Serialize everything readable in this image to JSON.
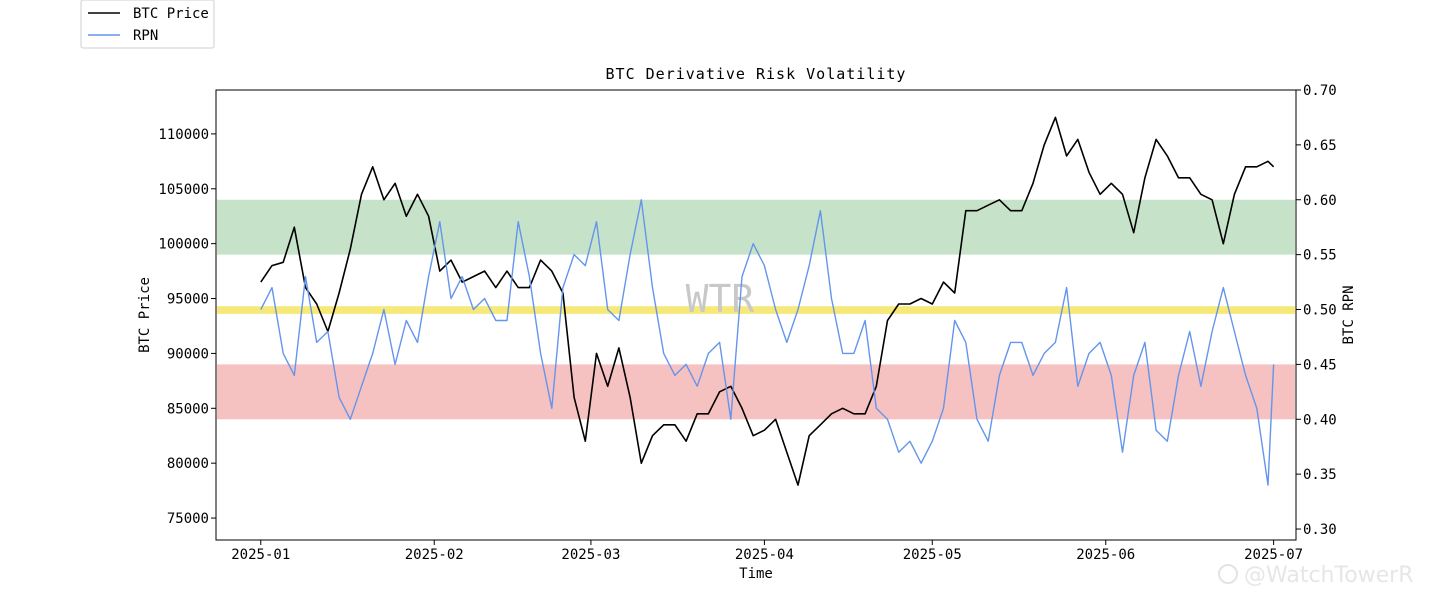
{
  "chart_data": {
    "type": "line",
    "title": "BTC Derivative Risk Volatility",
    "xlabel": "Time",
    "ylabel_left": "BTC Price",
    "ylabel_right": "BTC RPN",
    "x_ticks": [
      "2025-01",
      "2025-02",
      "2025-03",
      "2025-04",
      "2025-05",
      "2025-06",
      "2025-07"
    ],
    "y_left_ticks": [
      75000,
      80000,
      85000,
      90000,
      95000,
      100000,
      105000,
      110000
    ],
    "y_right_ticks": [
      "0.30",
      "0.35",
      "0.40",
      "0.45",
      "0.50",
      "0.55",
      "0.60",
      "0.65",
      "0.70"
    ],
    "y_left_range": [
      73000,
      114000
    ],
    "y_right_range": [
      0.29,
      0.7
    ],
    "x_range": [
      "2024-12-24",
      "2025-07-05"
    ],
    "grid": false,
    "legend_position": "outside-top-left",
    "bands": [
      {
        "name": "green",
        "from": 0.55,
        "to": 0.6,
        "color": "#c6e2c8"
      },
      {
        "name": "yellow",
        "from": 0.496,
        "to": 0.503,
        "color": "#f7e87a"
      },
      {
        "name": "red",
        "from": 0.4,
        "to": 0.45,
        "color": "#f6c1c1"
      }
    ],
    "series": [
      {
        "name": "BTC Price",
        "axis": "left",
        "color": "#000000",
        "x": [
          "2025-01-01",
          "2025-01-03",
          "2025-01-05",
          "2025-01-07",
          "2025-01-09",
          "2025-01-11",
          "2025-01-13",
          "2025-01-15",
          "2025-01-17",
          "2025-01-19",
          "2025-01-21",
          "2025-01-23",
          "2025-01-25",
          "2025-01-27",
          "2025-01-29",
          "2025-01-31",
          "2025-02-02",
          "2025-02-04",
          "2025-02-06",
          "2025-02-08",
          "2025-02-10",
          "2025-02-12",
          "2025-02-14",
          "2025-02-16",
          "2025-02-18",
          "2025-02-20",
          "2025-02-22",
          "2025-02-24",
          "2025-02-26",
          "2025-02-28",
          "2025-03-02",
          "2025-03-04",
          "2025-03-06",
          "2025-03-08",
          "2025-03-10",
          "2025-03-12",
          "2025-03-14",
          "2025-03-16",
          "2025-03-18",
          "2025-03-20",
          "2025-03-22",
          "2025-03-24",
          "2025-03-26",
          "2025-03-28",
          "2025-03-30",
          "2025-04-01",
          "2025-04-03",
          "2025-04-05",
          "2025-04-07",
          "2025-04-09",
          "2025-04-11",
          "2025-04-13",
          "2025-04-15",
          "2025-04-17",
          "2025-04-19",
          "2025-04-21",
          "2025-04-23",
          "2025-04-25",
          "2025-04-27",
          "2025-04-29",
          "2025-05-01",
          "2025-05-03",
          "2025-05-05",
          "2025-05-07",
          "2025-05-09",
          "2025-05-11",
          "2025-05-13",
          "2025-05-15",
          "2025-05-17",
          "2025-05-19",
          "2025-05-21",
          "2025-05-23",
          "2025-05-25",
          "2025-05-27",
          "2025-05-29",
          "2025-05-31",
          "2025-06-02",
          "2025-06-04",
          "2025-06-06",
          "2025-06-08",
          "2025-06-10",
          "2025-06-12",
          "2025-06-14",
          "2025-06-16",
          "2025-06-18",
          "2025-06-20",
          "2025-06-22",
          "2025-06-24",
          "2025-06-26",
          "2025-06-28",
          "2025-06-30",
          "2025-07-01"
        ],
        "values": [
          96500,
          98000,
          98300,
          101500,
          96000,
          94500,
          92000,
          95500,
          99500,
          104500,
          107000,
          104000,
          105500,
          102500,
          104500,
          102500,
          97500,
          98500,
          96500,
          97000,
          97500,
          96000,
          97500,
          96000,
          96000,
          98500,
          97500,
          95500,
          86000,
          82000,
          90000,
          87000,
          90500,
          86000,
          80000,
          82500,
          83500,
          83500,
          82000,
          84500,
          84500,
          86500,
          87000,
          85000,
          82500,
          83000,
          84000,
          81000,
          78000,
          82500,
          83500,
          84500,
          85000,
          84500,
          84500,
          87000,
          93000,
          94500,
          94500,
          95000,
          94500,
          96500,
          95500,
          103000,
          103000,
          103500,
          104000,
          103000,
          103000,
          105500,
          109000,
          111500,
          108000,
          109500,
          106500,
          104500,
          105500,
          104500,
          101000,
          106000,
          109500,
          108000,
          106000,
          106000,
          104500,
          104000,
          100000,
          104500,
          107000,
          107000,
          107500,
          107000
        ]
      },
      {
        "name": "RPN",
        "axis": "right",
        "color": "#6495ed",
        "x": [
          "2025-01-01",
          "2025-01-03",
          "2025-01-05",
          "2025-01-07",
          "2025-01-09",
          "2025-01-11",
          "2025-01-13",
          "2025-01-15",
          "2025-01-17",
          "2025-01-19",
          "2025-01-21",
          "2025-01-23",
          "2025-01-25",
          "2025-01-27",
          "2025-01-29",
          "2025-01-31",
          "2025-02-02",
          "2025-02-04",
          "2025-02-06",
          "2025-02-08",
          "2025-02-10",
          "2025-02-12",
          "2025-02-14",
          "2025-02-16",
          "2025-02-18",
          "2025-02-20",
          "2025-02-22",
          "2025-02-24",
          "2025-02-26",
          "2025-02-28",
          "2025-03-02",
          "2025-03-04",
          "2025-03-06",
          "2025-03-08",
          "2025-03-10",
          "2025-03-12",
          "2025-03-14",
          "2025-03-16",
          "2025-03-18",
          "2025-03-20",
          "2025-03-22",
          "2025-03-24",
          "2025-03-26",
          "2025-03-28",
          "2025-03-30",
          "2025-04-01",
          "2025-04-03",
          "2025-04-05",
          "2025-04-07",
          "2025-04-09",
          "2025-04-11",
          "2025-04-13",
          "2025-04-15",
          "2025-04-17",
          "2025-04-19",
          "2025-04-21",
          "2025-04-23",
          "2025-04-25",
          "2025-04-27",
          "2025-04-29",
          "2025-05-01",
          "2025-05-03",
          "2025-05-05",
          "2025-05-07",
          "2025-05-09",
          "2025-05-11",
          "2025-05-13",
          "2025-05-15",
          "2025-05-17",
          "2025-05-19",
          "2025-05-21",
          "2025-05-23",
          "2025-05-25",
          "2025-05-27",
          "2025-05-29",
          "2025-05-31",
          "2025-06-02",
          "2025-06-04",
          "2025-06-06",
          "2025-06-08",
          "2025-06-10",
          "2025-06-12",
          "2025-06-14",
          "2025-06-16",
          "2025-06-18",
          "2025-06-20",
          "2025-06-22",
          "2025-06-24",
          "2025-06-26",
          "2025-06-28",
          "2025-06-30",
          "2025-07-01"
        ],
        "values": [
          0.5,
          0.52,
          0.46,
          0.44,
          0.53,
          0.47,
          0.48,
          0.42,
          0.4,
          0.43,
          0.46,
          0.5,
          0.45,
          0.49,
          0.47,
          0.53,
          0.58,
          0.51,
          0.53,
          0.5,
          0.51,
          0.49,
          0.49,
          0.58,
          0.53,
          0.46,
          0.41,
          0.52,
          0.55,
          0.54,
          0.58,
          0.5,
          0.49,
          0.55,
          0.6,
          0.52,
          0.46,
          0.44,
          0.45,
          0.43,
          0.46,
          0.47,
          0.4,
          0.53,
          0.56,
          0.54,
          0.5,
          0.47,
          0.5,
          0.54,
          0.59,
          0.51,
          0.46,
          0.46,
          0.49,
          0.41,
          0.4,
          0.37,
          0.38,
          0.36,
          0.38,
          0.41,
          0.49,
          0.47,
          0.4,
          0.38,
          0.44,
          0.47,
          0.47,
          0.44,
          0.46,
          0.47,
          0.52,
          0.43,
          0.46,
          0.47,
          0.44,
          0.37,
          0.44,
          0.47,
          0.39,
          0.38,
          0.44,
          0.48,
          0.43,
          0.48,
          0.52,
          0.48,
          0.44,
          0.41,
          0.34,
          0.45
        ]
      }
    ]
  },
  "watermarks": {
    "center": "WTR",
    "corner": "@WatchTowerR"
  }
}
